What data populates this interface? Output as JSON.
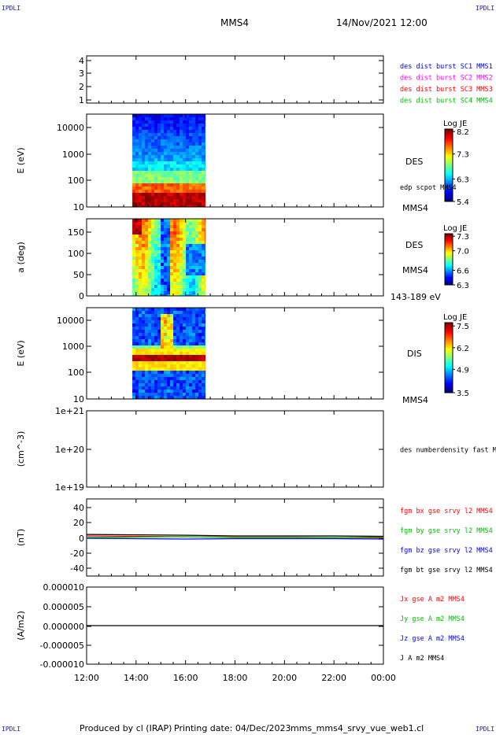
{
  "header": {
    "spacecraft": "MMS4",
    "datetime": "14/Nov/2021 12:00",
    "corner_label": "IPDLI"
  },
  "footer": {
    "produced_by": "Produced by cl (IRAP)",
    "printing_date": "Printing date: 04/Dec/2023",
    "filename": "mms_mms4_srvy_vue_web1.cl"
  },
  "colors": {
    "blue": "#0000ff",
    "magenta": "#ff00ff",
    "red": "#ff0000",
    "green": "#00c000",
    "black": "#000000"
  },
  "time_axis": {
    "ticks": [
      "12:00",
      "14:00",
      "16:00",
      "18:00",
      "20:00",
      "22:00",
      "00:00"
    ],
    "range_hours": [
      12,
      24
    ]
  },
  "chart_data": [
    {
      "id": "panel1",
      "type": "line",
      "yticks": [
        "4",
        "3",
        "2",
        "1"
      ],
      "ylim": [
        0.5,
        4.5
      ],
      "legend": [
        {
          "text": "des dist burst SC1 MMS1",
          "color": "#0000ff"
        },
        {
          "text": "des dist burst SC2 MMS2",
          "color": "#ff00ff"
        },
        {
          "text": "des dist burst SC3 MMS3",
          "color": "#ff0000"
        },
        {
          "text": "des dist burst SC4 MMS4",
          "color": "#00c000"
        }
      ]
    },
    {
      "id": "panel2",
      "type": "heatmap",
      "ylabel": "E (eV)",
      "yscale": "log",
      "ylim": [
        10,
        30000
      ],
      "yticks": [
        "10000",
        "1000",
        "100",
        "10"
      ],
      "data_time_range": [
        13.85,
        16.8
      ],
      "colorbar": {
        "title": "Log JE",
        "range": [
          5.4,
          8.3
        ],
        "ticks": [
          "8.2",
          "7.3",
          "6.3",
          "5.4"
        ]
      },
      "right_labels": [
        "DES",
        "edp scpot MMS4",
        "MMS4"
      ]
    },
    {
      "id": "panel3",
      "type": "heatmap",
      "ylabel": "a (deg)",
      "ylim": [
        0,
        180
      ],
      "yticks": [
        "150",
        "100",
        "50",
        "0"
      ],
      "data_time_range": [
        13.85,
        16.8
      ],
      "colorbar": {
        "title": "Log JE",
        "range": [
          6.3,
          7.35
        ],
        "ticks": [
          "7.3",
          "7.0",
          "6.6",
          "6.3"
        ]
      },
      "right_labels": [
        "DES",
        "MMS4",
        "143-189 eV"
      ]
    },
    {
      "id": "panel4",
      "type": "heatmap",
      "ylabel": "E (eV)",
      "yscale": "log",
      "ylim": [
        10,
        30000
      ],
      "yticks": [
        "10000",
        "1000",
        "100",
        "10"
      ],
      "data_time_range": [
        13.85,
        16.8
      ],
      "colorbar": {
        "title": "Log JE",
        "range": [
          3.5,
          7.7
        ],
        "ticks": [
          "7.5",
          "6.2",
          "4.9",
          "3.5"
        ]
      },
      "right_labels": [
        "DIS",
        "MMS4"
      ]
    },
    {
      "id": "panel5",
      "type": "line",
      "ylabel": "(cm^-3)",
      "yscale": "log",
      "yticks": [
        "1e+21",
        "1e+20",
        "1e+19"
      ],
      "legend": [
        {
          "text": "des numberdensity fast M",
          "color": "#000000"
        }
      ]
    },
    {
      "id": "panel6",
      "type": "line",
      "ylabel": "(nT)",
      "ylim": [
        -50,
        50
      ],
      "yticks": [
        "40",
        "20",
        "0",
        "-20",
        "-40"
      ],
      "legend": [
        {
          "text": "fgm bx gse srvy l2 MMS4",
          "color": "#ff0000"
        },
        {
          "text": "fgm by gse srvy l2 MMS4",
          "color": "#00c000"
        },
        {
          "text": "fgm bz gse srvy l2 MMS4",
          "color": "#0000ff"
        },
        {
          "text": "fgm bt gse srvy l2 MMS4",
          "color": "#000000"
        }
      ],
      "series": [
        {
          "name": "fgm bx gse srvy l2 MMS4",
          "color": "#ff0000",
          "x": [
            12,
            14,
            16,
            18,
            20,
            22,
            24
          ],
          "values": [
            2,
            1.5,
            1,
            0.5,
            0.5,
            0,
            -0.5
          ]
        },
        {
          "name": "fgm by gse srvy l2 MMS4",
          "color": "#00c000",
          "x": [
            12,
            14,
            16,
            18,
            20,
            22,
            24
          ],
          "values": [
            0,
            0.5,
            1,
            0,
            0,
            0,
            0.5
          ]
        },
        {
          "name": "fgm bz gse srvy l2 MMS4",
          "color": "#0000ff",
          "x": [
            12,
            14,
            16,
            18,
            20,
            22,
            24
          ],
          "values": [
            -1,
            -1.5,
            -2,
            -1.5,
            -1.5,
            -1.5,
            -2
          ]
        },
        {
          "name": "fgm bt gse srvy l2 MMS4",
          "color": "#000000",
          "x": [
            12,
            14,
            16,
            18,
            20,
            22,
            24
          ],
          "values": [
            4,
            3.5,
            3,
            2,
            2,
            2,
            1.5
          ]
        }
      ]
    },
    {
      "id": "panel7",
      "type": "line",
      "ylabel": "(A/m2)",
      "ylim": [
        -1e-05,
        1e-05
      ],
      "yticks": [
        "0.000010",
        "0.000005",
        "0.000000",
        "-0.000005",
        "-0.000010"
      ],
      "legend": [
        {
          "text": "Jx gse A m2 MMS4",
          "color": "#ff0000"
        },
        {
          "text": "Jy gse A m2 MMS4",
          "color": "#00c000"
        },
        {
          "text": "Jz gse A m2 MMS4",
          "color": "#0000ff"
        },
        {
          "text": "J A m2 MMS4",
          "color": "#000000"
        }
      ],
      "series": [
        {
          "name": "J A m2 MMS4",
          "color": "#000000",
          "x": [
            12,
            14,
            16,
            18,
            20,
            22,
            24
          ],
          "values": [
            0,
            0,
            0,
            0,
            0,
            0,
            0
          ]
        }
      ]
    }
  ]
}
